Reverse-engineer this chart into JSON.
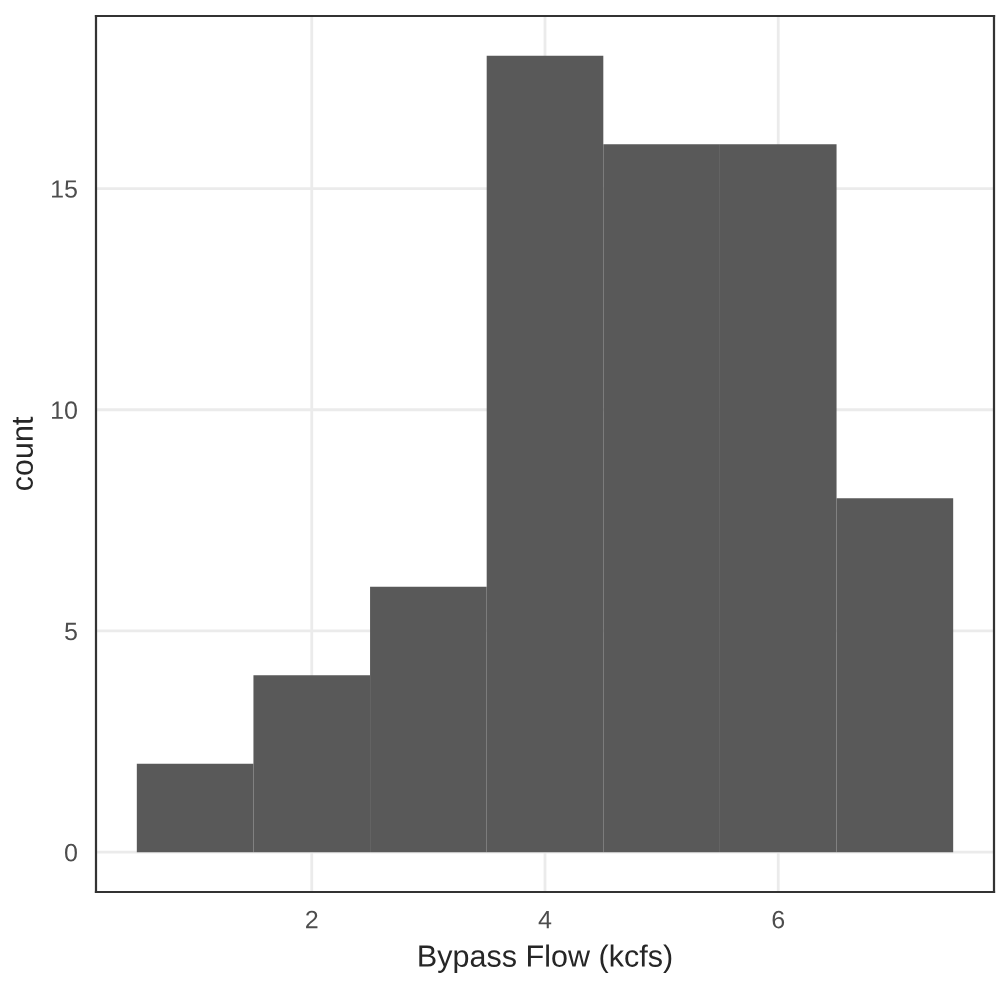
{
  "chart_data": {
    "type": "histogram",
    "xlabel": "Bypass Flow (kcfs)",
    "ylabel": "count",
    "bins": [
      0.5,
      1.5,
      2.5,
      3.5,
      4.5,
      5.5,
      6.5,
      7.5
    ],
    "values": [
      2,
      4,
      6,
      18,
      16,
      16,
      8
    ],
    "color": "#595959",
    "xlim": [
      0.15,
      7.85
    ],
    "xticks": [
      2,
      4,
      6
    ],
    "ylim": [
      -0.9,
      18.9
    ],
    "yticks": [
      0,
      5,
      10,
      15
    ],
    "grid": true,
    "legend": false
  }
}
